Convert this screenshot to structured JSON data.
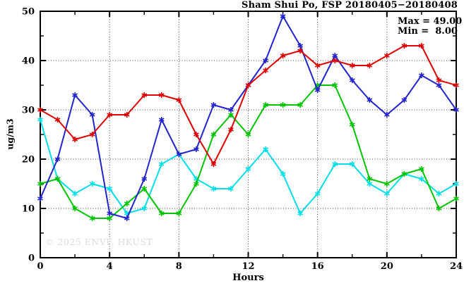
{
  "chart_data": {
    "type": "line",
    "title": "Sham Shui Po, FSP 20180405−20180408",
    "xlabel": "Hours",
    "ylabel": "ug/m3",
    "xlim": [
      0,
      24
    ],
    "ylim": [
      0,
      50
    ],
    "x_major_ticks": [
      0,
      4,
      8,
      12,
      16,
      20,
      24
    ],
    "x_minor_step": 2,
    "y_major_ticks": [
      0,
      10,
      20,
      30,
      40,
      50
    ],
    "y_minor_step": 5,
    "grid": "dotted-on-major-interior",
    "legend_position": "none",
    "marker": "asterisk-star",
    "x": [
      0,
      1,
      2,
      3,
      4,
      5,
      6,
      7,
      8,
      9,
      10,
      11,
      12,
      13,
      14,
      15,
      16,
      17,
      18,
      19,
      20,
      21,
      22,
      23,
      24
    ],
    "series": [
      {
        "name": "cyan-series",
        "color": "#00dfe8",
        "values": [
          28,
          16,
          13,
          15,
          14,
          9,
          10,
          19,
          21,
          16,
          14,
          14,
          18,
          22,
          17,
          9,
          13,
          19,
          19,
          15,
          13,
          17,
          16,
          13,
          15
        ]
      },
      {
        "name": "green-series",
        "color": "#00c400",
        "values": [
          15,
          16,
          10,
          8,
          8,
          11,
          14,
          9,
          9,
          15,
          25,
          29,
          25,
          31,
          31,
          31,
          35,
          35,
          27,
          16,
          15,
          17,
          18,
          10,
          12
        ]
      },
      {
        "name": "blue-series",
        "color": "#2424cd",
        "values": [
          12,
          20,
          33,
          29,
          9,
          8,
          16,
          28,
          21,
          22,
          31,
          30,
          35,
          40,
          49,
          43,
          34,
          41,
          36,
          32,
          29,
          32,
          37,
          35,
          30
        ]
      },
      {
        "name": "red-series",
        "color": "#dd0000",
        "values": [
          30,
          28,
          24,
          25,
          29,
          29,
          33,
          33,
          32,
          25,
          19,
          26,
          35,
          38,
          41,
          42,
          39,
          40,
          39,
          39,
          41,
          43,
          43,
          36,
          35
        ]
      }
    ],
    "annotations": {
      "max_label": "Max = 49.00",
      "min_label": "Min =  8.00"
    },
    "watermark": "© 2025 ENVF, HKUST",
    "frame_color": "#000000",
    "gridline_color": "#444444"
  }
}
